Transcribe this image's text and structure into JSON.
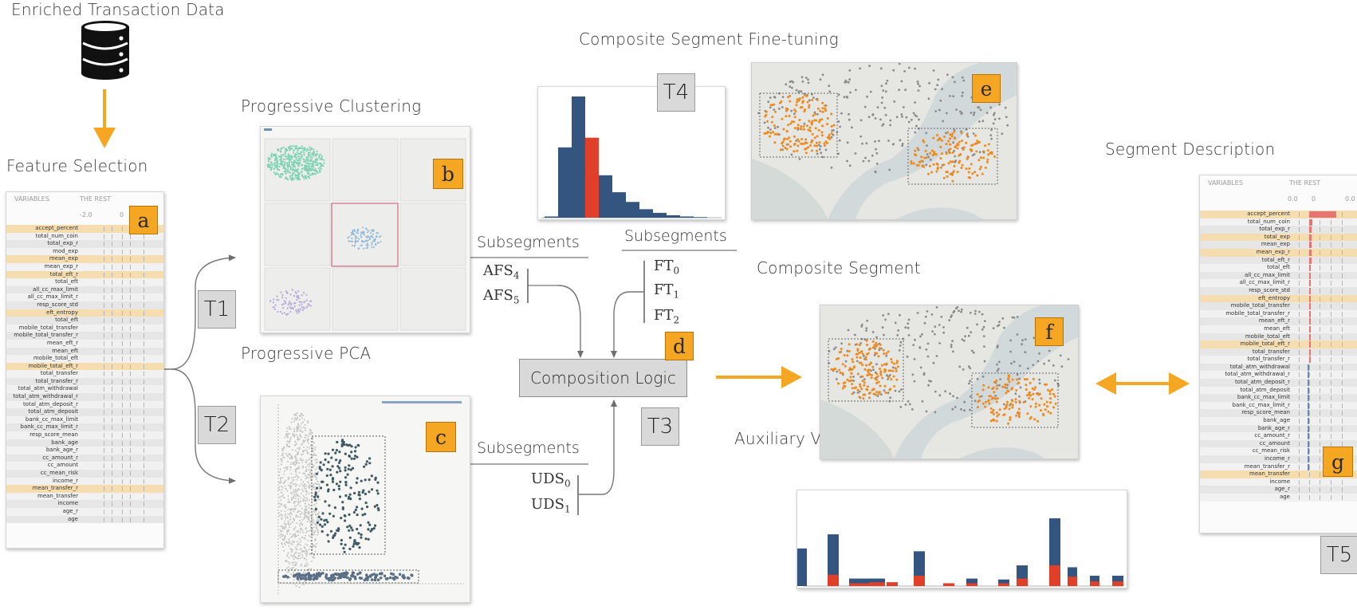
{
  "titles": {
    "data_source": "Enriched Transaction Data",
    "feature_selection": "Feature Selection",
    "progressive_clustering": "Progressive Clustering",
    "progressive_pca": "Progressive PCA",
    "fine_tuning": "Composite Segment Fine-tuning",
    "composite_segment": "Composite Segment",
    "auxiliary_views": "Auxiliary Views",
    "segment_description": "Segment Description"
  },
  "badges": {
    "a": "a",
    "b": "b",
    "c": "c",
    "d": "d",
    "e": "e",
    "f": "f",
    "g": "g"
  },
  "tasks": {
    "t1": "T1",
    "t2": "T2",
    "t3": "T3",
    "t4": "T4",
    "t5": "T5"
  },
  "composition_logic": "Composition Logic",
  "subsegments": {
    "label": "Subsegments",
    "afs": [
      {
        "base": "AFS",
        "sub": "4"
      },
      {
        "base": "AFS",
        "sub": "5"
      }
    ],
    "ft": [
      {
        "base": "FT",
        "sub": "0"
      },
      {
        "base": "FT",
        "sub": "1"
      },
      {
        "base": "FT",
        "sub": "2"
      }
    ],
    "uds": [
      {
        "base": "UDS",
        "sub": "0"
      },
      {
        "base": "UDS",
        "sub": "1"
      }
    ]
  },
  "feature_table": {
    "col_variables": "VARIABLES",
    "col_rest": "THE REST",
    "tick_labels": [
      "-2.0",
      "0"
    ],
    "variables": [
      "accept_percent",
      "total_num_coin",
      "total_exp_r",
      "mod_exp",
      "mean_exp",
      "mean_exp_r",
      "total_eft_r",
      "total_eft",
      "all_cc_max_limit",
      "all_cc_max_limit_r",
      "resp_score_std",
      "eft_entropy",
      "total_eft",
      "mobile_total_transfer",
      "mobile_total_transfer_r",
      "mean_eft_r",
      "mean_eft",
      "mobile_total_eft",
      "mobile_total_eft_r",
      "total_transfer",
      "total_transfer_r",
      "total_atm_withdrawal",
      "total_atm_withdrawal_r",
      "total_atm_deposit_r",
      "total_atm_deposit",
      "bank_cc_max_limit",
      "bank_cc_max_limit_r",
      "resp_score_mean",
      "bank_age",
      "bank_age_r",
      "cc_amount_r",
      "cc_amount",
      "cc_mean_risk",
      "income_r",
      "mean_transfer_r",
      "mean_transfer",
      "income",
      "age_r",
      "age"
    ],
    "highlighted": [
      0,
      4,
      6,
      11,
      18,
      34
    ]
  },
  "segment_table": {
    "col_variables": "VARIABLES",
    "col_rest": "THE REST",
    "tick_labels": [
      "0.0",
      "0",
      "0.0"
    ],
    "variables": [
      "accept_percent",
      "total_num_coin",
      "total_exp_r",
      "total_exp",
      "mean_exp",
      "mean_exp_r",
      "total_eft_r",
      "total_eft",
      "all_cc_max_limit",
      "all_cc_max_limit_r",
      "resp_score_std",
      "eft_entropy",
      "mobile_total_transfer",
      "mobile_total_transfer_r",
      "mean_eft_r",
      "mean_eft",
      "mobile_total_eft",
      "mobile_total_eft_r",
      "total_transfer",
      "total_transfer_r",
      "total_atm_withdrawal",
      "total_atm_withdrawal_r",
      "total_atm_deposit_r",
      "total_atm_deposit",
      "bank_cc_max_limit",
      "bank_cc_max_limit_r",
      "resp_score_mean",
      "bank_age",
      "bank_age_r",
      "cc_amount_r",
      "cc_amount",
      "cc_mean_risk",
      "income_r",
      "mean_transfer_r",
      "mean_transfer",
      "income",
      "age_r",
      "age"
    ],
    "highlighted": [
      0,
      3,
      5,
      11,
      17,
      34
    ],
    "bars": [
      1.0,
      0.12,
      0.1,
      0.1,
      0.08,
      0.08,
      0.08,
      0.06,
      0.06,
      0.05,
      0.05,
      0.05,
      0.04,
      0.04,
      0.04,
      0.04,
      0.04,
      0.04,
      0.03,
      0.03,
      -0.06,
      -0.06,
      -0.05,
      -0.05,
      -0.05,
      -0.04,
      -0.04,
      -0.03,
      -0.03,
      -0.02,
      -0.02,
      -0.02,
      -0.01,
      -0.01,
      0,
      0,
      0,
      0
    ]
  },
  "colors": {
    "accent": "#f5a623",
    "navy": "#34557f",
    "red": "#e0402a",
    "teal": "#7fd3b4",
    "blue": "#8ab6dc",
    "lavender": "#b7a9dc"
  },
  "charts": {
    "fine_tuning_histogram": {
      "type": "bar",
      "values": [
        1,
        58,
        100,
        66,
        35,
        21,
        13,
        7,
        4,
        2,
        1,
        0.5
      ],
      "highlight_index": 3
    },
    "auxiliary_views": {
      "type": "bar",
      "groups": [
        {
          "navy": 0.4,
          "red": 0
        },
        {
          "navy": 0.55,
          "red": 0.12
        },
        {
          "navy": 0.08,
          "red": 0.03
        },
        {
          "navy": 0.08,
          "red": 0.04
        },
        {
          "navy": 0.04,
          "red": 0.04
        },
        {
          "navy": 0.37,
          "red": 0.11
        },
        {
          "navy": 0.03,
          "red": 0.03
        },
        {
          "navy": 0.08,
          "red": 0.03
        },
        {
          "navy": 0.07,
          "red": 0.03
        },
        {
          "navy": 0.22,
          "red": 0.08
        },
        {
          "navy": 0.72,
          "red": 0.22
        },
        {
          "navy": 0.2,
          "red": 0.1
        },
        {
          "navy": 0.11,
          "red": 0.05
        },
        {
          "navy": 0.11,
          "red": 0.05
        }
      ]
    }
  }
}
